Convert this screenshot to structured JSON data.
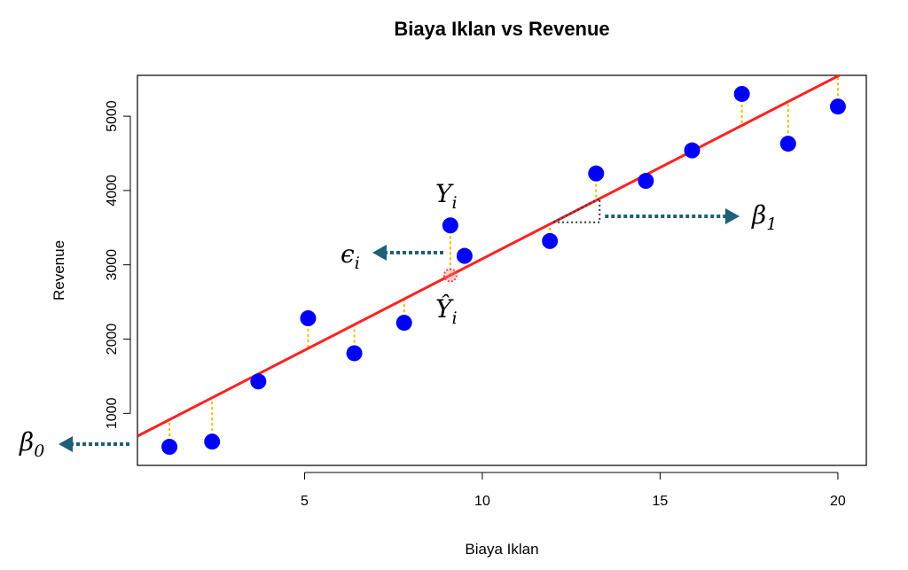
{
  "chart_data": {
    "type": "scatter",
    "title": "Biaya Iklan vs Revenue",
    "xlabel": "Biaya Iklan",
    "ylabel": "Revenue",
    "xlim": [
      0.3,
      20.8
    ],
    "ylim": [
      300,
      5550
    ],
    "x_ticks": [
      5,
      10,
      15,
      20
    ],
    "x_tick_labels": [
      "5",
      "10",
      "15",
      "20"
    ],
    "y_ticks": [
      1000,
      2000,
      3000,
      4000,
      5000
    ],
    "y_tick_labels": [
      "1000",
      "2000",
      "3000",
      "4000",
      "5000"
    ],
    "series": [
      {
        "points": [
          {
            "x": 1.2,
            "y": 550
          },
          {
            "x": 2.4,
            "y": 620
          },
          {
            "x": 3.7,
            "y": 1430
          },
          {
            "x": 5.1,
            "y": 2280
          },
          {
            "x": 6.4,
            "y": 1810
          },
          {
            "x": 7.8,
            "y": 2220
          },
          {
            "x": 9.1,
            "y": 3530
          },
          {
            "x": 9.5,
            "y": 3120
          },
          {
            "x": 11.9,
            "y": 3320
          },
          {
            "x": 13.2,
            "y": 4230
          },
          {
            "x": 14.6,
            "y": 4130
          },
          {
            "x": 15.9,
            "y": 4540
          },
          {
            "x": 17.3,
            "y": 5300
          },
          {
            "x": 18.6,
            "y": 4630
          },
          {
            "x": 20.0,
            "y": 5130
          }
        ],
        "color": "#0000ff"
      }
    ],
    "regression_line": {
      "intercept": 620,
      "slope": 246,
      "color": "#ff2222"
    },
    "residual_color": "#f5b800",
    "highlight_point": {
      "x": 9.1,
      "color": "#ff4444"
    },
    "grid": false,
    "annotations": {
      "beta0": {
        "base": "β",
        "sub": "0"
      },
      "beta1": {
        "base": "β",
        "sub": "1"
      },
      "epsilon": {
        "base": "ϵ",
        "sub": "i"
      },
      "y_actual": {
        "base": "Y",
        "sub": "i"
      },
      "y_hat": {
        "base": "Ŷ",
        "sub": "i"
      },
      "arrow_color": "#1f5f78"
    }
  }
}
